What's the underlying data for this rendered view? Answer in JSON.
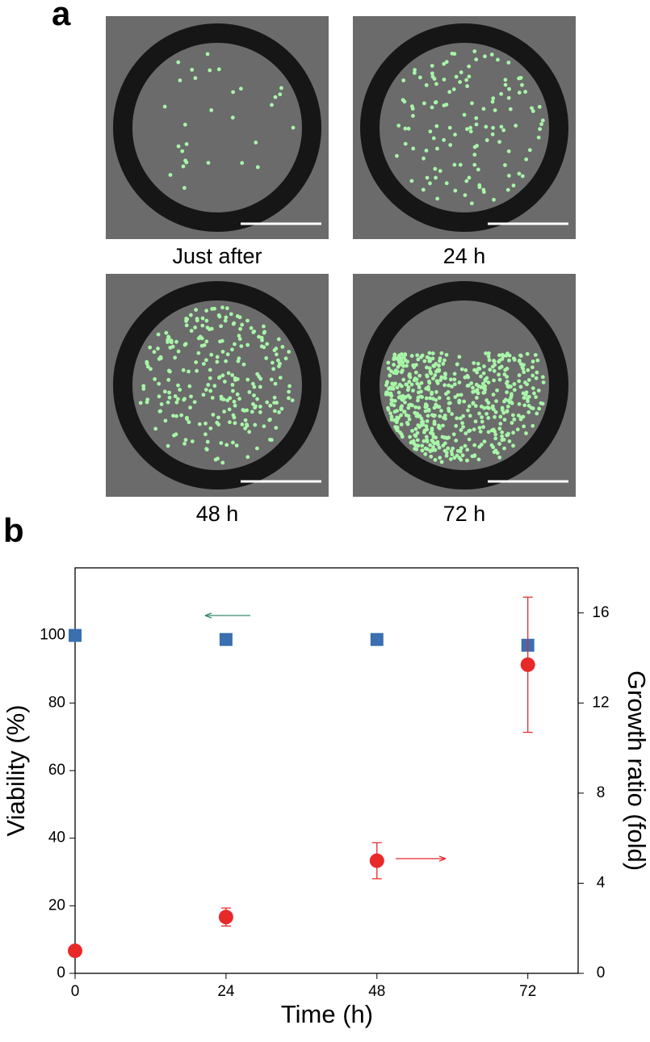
{
  "panels": {
    "a": {
      "label": "a",
      "captions": [
        "Just after",
        "24 h",
        "48 h",
        "72 h"
      ]
    }
  },
  "chart_data": {
    "type": "scatter",
    "label": "b",
    "x": [
      0,
      24,
      48,
      72
    ],
    "series": [
      {
        "color": "#3a6fb0",
        "marker": "square",
        "values": [
          100,
          98.8,
          98.8,
          97.1
        ]
      },
      {
        "color": "#e8292a",
        "marker": "circle",
        "axis": "y2",
        "values": [
          1.0,
          2.5,
          5.0,
          13.7
        ],
        "errors": [
          0,
          0.4,
          0.8,
          3.0
        ]
      }
    ],
    "xlabel": "Time (h)",
    "ylabel": "Viability (%)",
    "y2label": "Growth ratio (fold)",
    "xlim": [
      0,
      80
    ],
    "xticks": [
      0,
      24,
      48,
      72
    ],
    "ylim": [
      0,
      120
    ],
    "yticks": [
      0,
      20,
      40,
      60,
      80,
      100
    ],
    "y2lim": [
      0,
      18
    ],
    "y2ticks": [
      0,
      4,
      8,
      12,
      16
    ]
  }
}
